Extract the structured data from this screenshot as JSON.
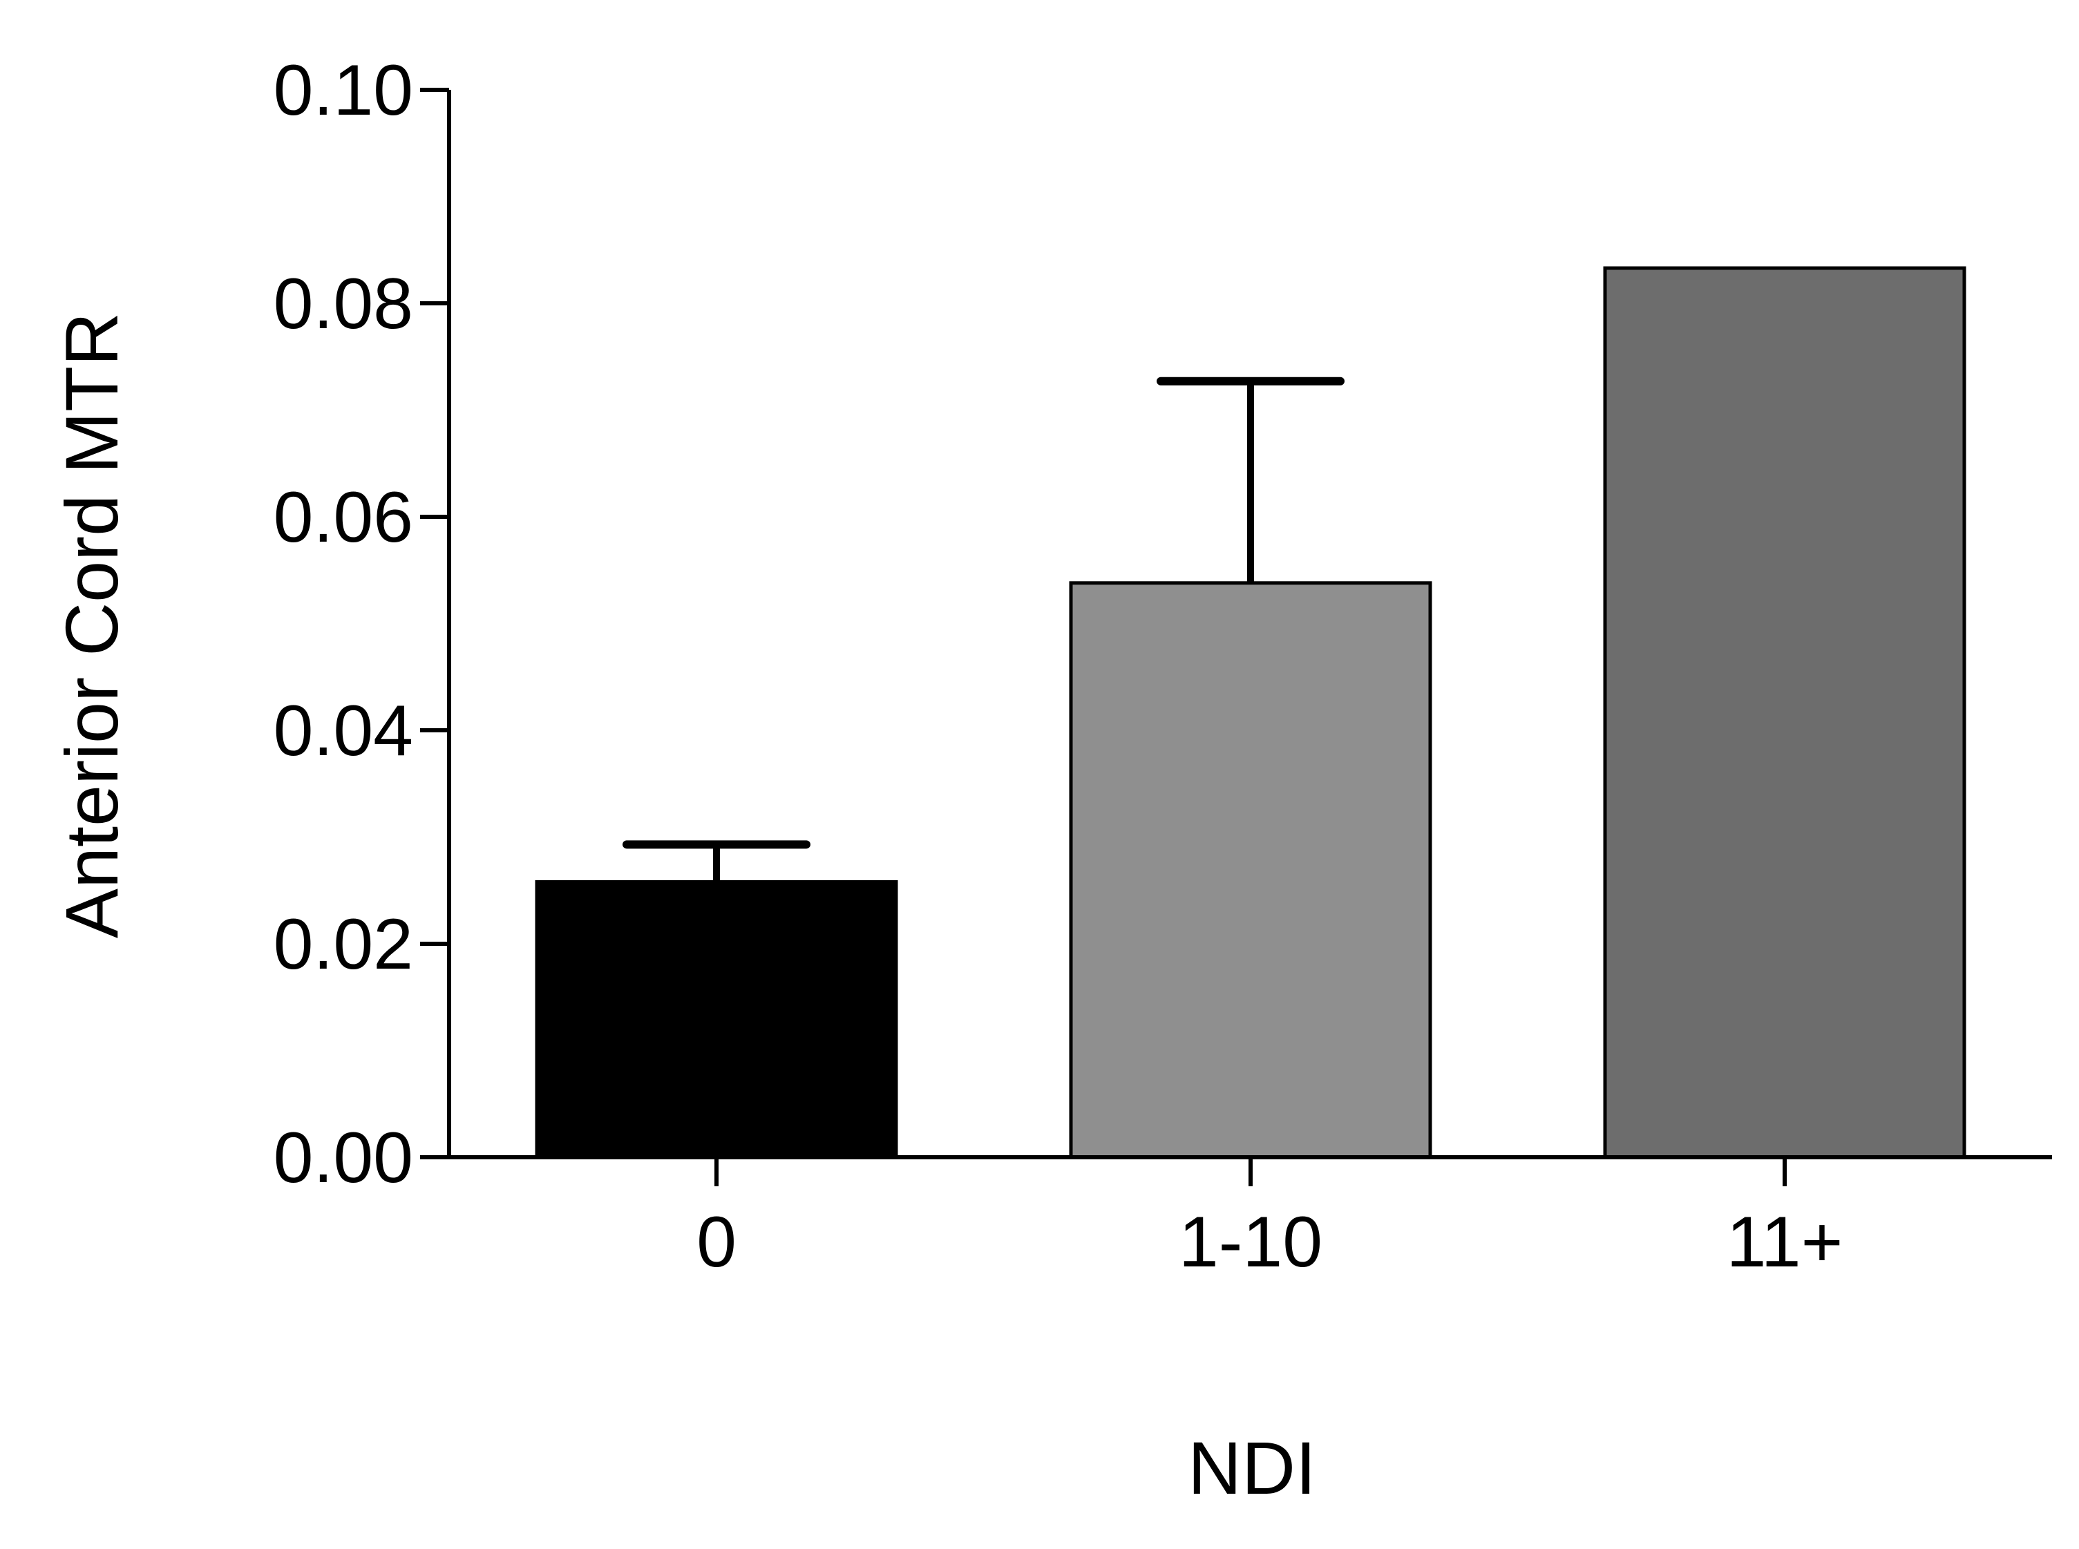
{
  "chart_data": {
    "type": "bar",
    "title": "",
    "xlabel": "NDI",
    "ylabel": "Anterior Cord MTR",
    "categories": [
      "0",
      "1-10",
      "11+"
    ],
    "values": [
      0.0258,
      0.0538,
      0.0833
    ],
    "error_upper": [
      0.0293,
      0.0727,
      null
    ],
    "colors": [
      "#000000",
      "#8f8f8f",
      "#6d6d6d"
    ],
    "ylim": [
      0,
      0.1
    ],
    "yticks": [
      "0.00",
      "0.02",
      "0.04",
      "0.06",
      "0.08",
      "0.10"
    ],
    "grid": false,
    "legend": "none"
  }
}
